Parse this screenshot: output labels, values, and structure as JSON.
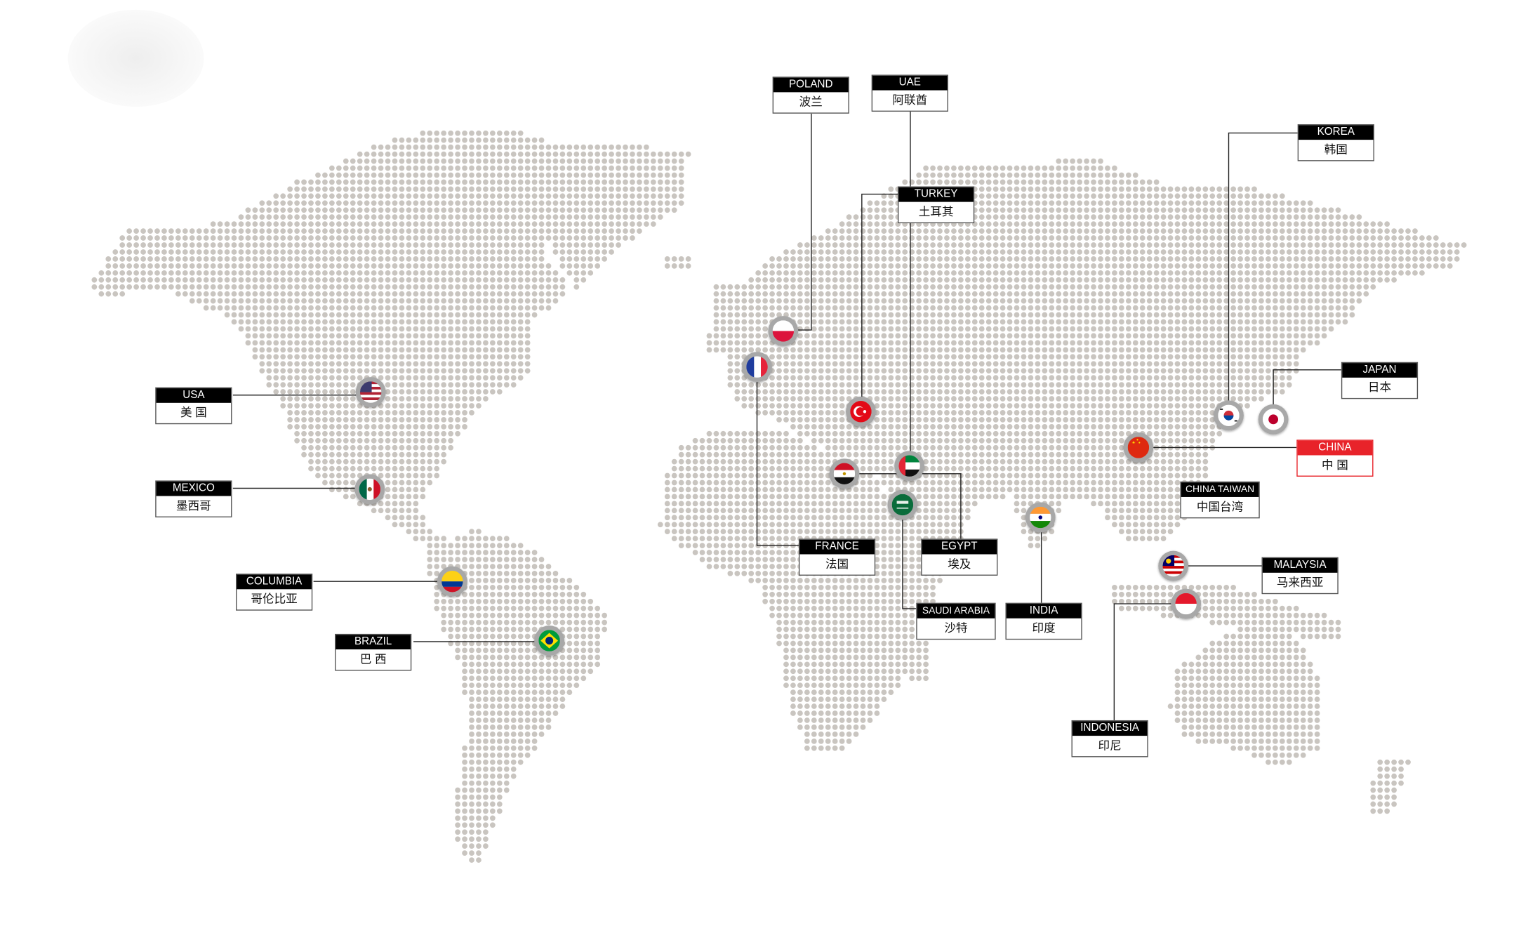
{
  "colors": {
    "dot": "#c9c5c0",
    "line": "#222222",
    "label_header": "#000000",
    "highlight": "#e8232a",
    "flag_ring": "#a8a8a8"
  },
  "locations": [
    {
      "id": "poland",
      "en": "POLAND",
      "zh": "波兰",
      "flag_icon": "poland-flag-icon"
    },
    {
      "id": "uae",
      "en": "UAE",
      "zh": "阿联酋",
      "flag_icon": "uae-flag-icon"
    },
    {
      "id": "turkey",
      "en": "TURKEY",
      "zh": "土耳其",
      "flag_icon": "turkey-flag-icon"
    },
    {
      "id": "korea",
      "en": "KOREA",
      "zh": "韩国",
      "flag_icon": "korea-flag-icon"
    },
    {
      "id": "japan",
      "en": "JAPAN",
      "zh": "日本",
      "flag_icon": "japan-flag-icon"
    },
    {
      "id": "china",
      "en": "CHINA",
      "zh": "中 国",
      "flag_icon": "china-flag-icon",
      "highlight": true
    },
    {
      "id": "taiwan",
      "en": "CHINA TAIWAN",
      "zh": "中国台湾"
    },
    {
      "id": "malaysia",
      "en": "MALAYSIA",
      "zh": "马来西亚",
      "flag_icon": "malaysia-flag-icon"
    },
    {
      "id": "indonesia",
      "en": "INDONESIA",
      "zh": "印尼",
      "flag_icon": "indonesia-flag-icon"
    },
    {
      "id": "india",
      "en": "INDIA",
      "zh": "印度",
      "flag_icon": "india-flag-icon"
    },
    {
      "id": "saudi",
      "en": "SAUDI ARABIA",
      "zh": "沙特",
      "flag_icon": "saudi-arabia-flag-icon"
    },
    {
      "id": "egypt",
      "en": "EGYPT",
      "zh": "埃及",
      "flag_icon": "egypt-flag-icon"
    },
    {
      "id": "france",
      "en": "FRANCE",
      "zh": "法国",
      "flag_icon": "france-flag-icon"
    },
    {
      "id": "usa",
      "en": "USA",
      "zh": "美 国",
      "flag_icon": "usa-flag-icon"
    },
    {
      "id": "mexico",
      "en": "MEXICO",
      "zh": "墨西哥",
      "flag_icon": "mexico-flag-icon"
    },
    {
      "id": "columbia",
      "en": "COLUMBIA",
      "zh": "哥伦比亚",
      "flag_icon": "colombia-flag-icon"
    },
    {
      "id": "brazil",
      "en": "BRAZIL",
      "zh": "巴 西",
      "flag_icon": "brazil-flag-icon"
    }
  ]
}
